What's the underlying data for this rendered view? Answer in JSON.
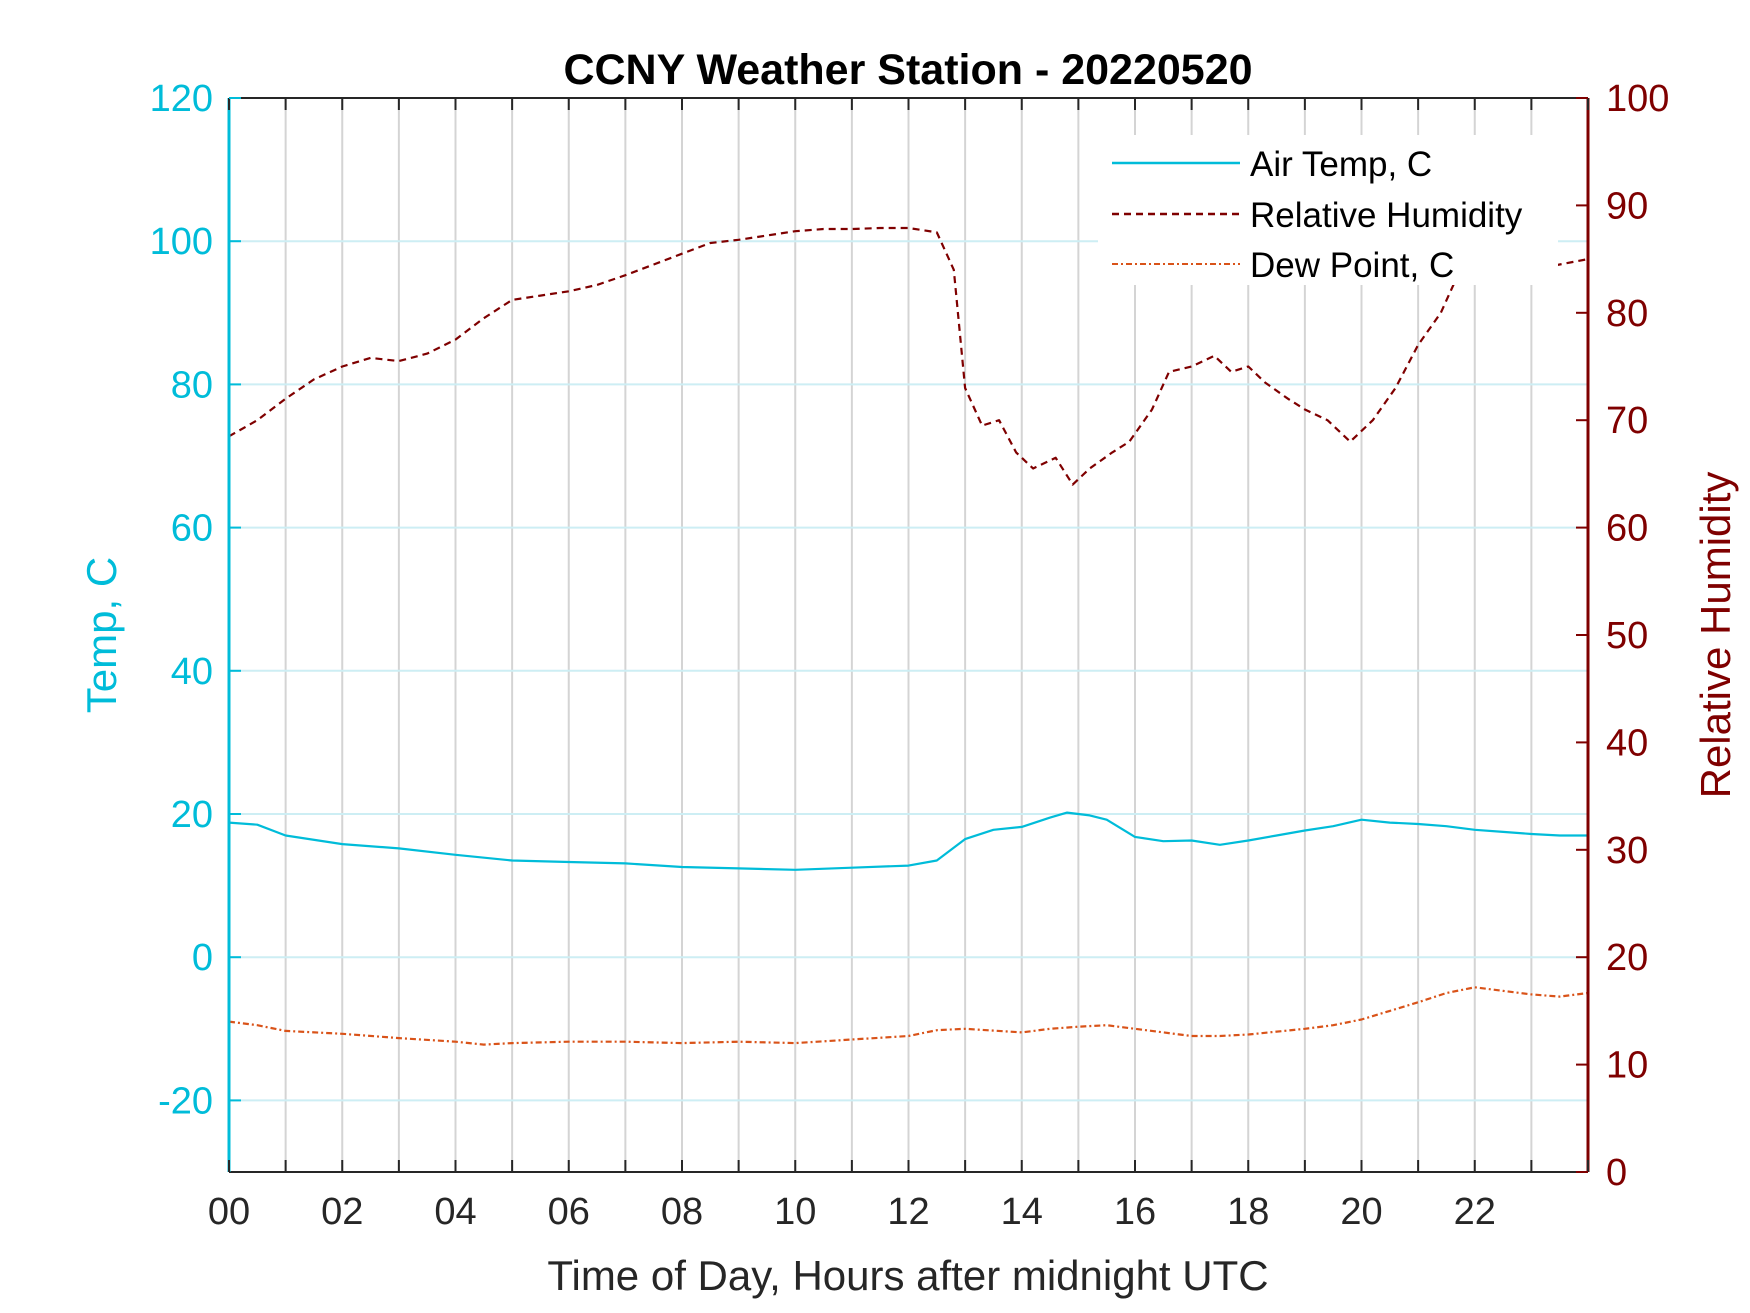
{
  "chart_data": {
    "type": "line",
    "title": "CCNY Weather Station - 20220520",
    "xlabel": "Time of Day, Hours after midnight UTC",
    "ylabel_left": "Temp, C",
    "ylabel_right": "Relative Humidity",
    "xlim": [
      0,
      24
    ],
    "ylim_left": [
      -30,
      120
    ],
    "ylim_right": [
      0,
      100
    ],
    "x_ticks": [
      0,
      2,
      4,
      6,
      8,
      10,
      12,
      14,
      16,
      18,
      20,
      22
    ],
    "x_tick_labels": [
      "00",
      "02",
      "04",
      "06",
      "08",
      "10",
      "12",
      "14",
      "16",
      "18",
      "20",
      "22"
    ],
    "y_left_ticks": [
      -20,
      0,
      20,
      40,
      60,
      80,
      100,
      120
    ],
    "y_right_ticks": [
      0,
      10,
      20,
      30,
      40,
      50,
      60,
      70,
      80,
      90,
      100
    ],
    "grid": "vertical lines every hour; horizontal lines at left-axis ticks",
    "legend_position": "top-right",
    "colors": {
      "air_temp": "#00bcd9",
      "humidity": "#7f0000",
      "dew_point": "#d95319",
      "left_axis": "#00bcd9",
      "right_axis": "#7f0000"
    },
    "series": [
      {
        "name": "Air Temp, C",
        "axis": "left",
        "style": "solid",
        "x": [
          0,
          0.5,
          1,
          2,
          3,
          4,
          5,
          6,
          7,
          8,
          9,
          10,
          11,
          12,
          12.5,
          13,
          13.5,
          14,
          14.5,
          14.8,
          15.2,
          15.5,
          16,
          16.5,
          17,
          17.5,
          18,
          18.5,
          19,
          19.5,
          20,
          20.5,
          21,
          21.5,
          22,
          22.5,
          23,
          23.5,
          24
        ],
        "y": [
          18.8,
          18.5,
          17,
          15.8,
          15.2,
          14.3,
          13.5,
          13.3,
          13.1,
          12.6,
          12.4,
          12.2,
          12.5,
          12.8,
          13.5,
          16.5,
          17.8,
          18.2,
          19.5,
          20.2,
          19.8,
          19.2,
          16.8,
          16.2,
          16.3,
          15.7,
          16.3,
          17,
          17.7,
          18.3,
          19.2,
          18.8,
          18.6,
          18.3,
          17.8,
          17.5,
          17.2,
          17,
          17
        ]
      },
      {
        "name": "Relative Humidity",
        "axis": "right",
        "style": "dashed",
        "x": [
          0,
          0.5,
          1,
          1.5,
          2,
          2.5,
          3,
          3.5,
          4,
          4.5,
          5,
          5.5,
          6,
          6.5,
          7,
          7.5,
          8,
          8.5,
          9,
          9.5,
          10,
          10.5,
          11,
          11.5,
          12,
          12.5,
          12.8,
          13,
          13.3,
          13.6,
          13.9,
          14.2,
          14.6,
          14.9,
          15.2,
          15.6,
          15.9,
          16.3,
          16.6,
          17,
          17.4,
          17.7,
          18,
          18.3,
          18.7,
          19,
          19.4,
          19.8,
          20.2,
          20.6,
          21,
          21.4,
          21.7,
          22,
          22.5,
          23,
          23.5,
          24
        ],
        "y": [
          68.5,
          70,
          72,
          73.8,
          75,
          75.8,
          75.5,
          76.2,
          77.5,
          79.5,
          81.2,
          81.6,
          82,
          82.6,
          83.5,
          84.5,
          85.5,
          86.5,
          86.8,
          87.2,
          87.6,
          87.8,
          87.8,
          87.9,
          87.9,
          87.5,
          84,
          73,
          69.5,
          70,
          67,
          65.5,
          66.5,
          64,
          65.5,
          67,
          68,
          71,
          74.5,
          75,
          76,
          74.5,
          75,
          73.5,
          72,
          71,
          70,
          68,
          70,
          73,
          77,
          80,
          83.5,
          84.8,
          84.5,
          84,
          84.5,
          85
        ]
      },
      {
        "name": "Dew Point, C",
        "axis": "left",
        "style": "dash-dot",
        "x": [
          0,
          0.5,
          1,
          2,
          3,
          4,
          4.5,
          5,
          6,
          7,
          8,
          9,
          10,
          11,
          12,
          12.5,
          13,
          14,
          14.5,
          15,
          15.5,
          16,
          16.5,
          17,
          17.5,
          18,
          19,
          19.5,
          20,
          20.5,
          21,
          21.5,
          22,
          22.5,
          23,
          23.5,
          24
        ],
        "y": [
          -9,
          -9.5,
          -10.3,
          -10.7,
          -11.3,
          -11.8,
          -12.2,
          -12,
          -11.8,
          -11.8,
          -12,
          -11.8,
          -12,
          -11.5,
          -11,
          -10.2,
          -10,
          -10.5,
          -10,
          -9.7,
          -9.5,
          -10,
          -10.5,
          -11,
          -11,
          -10.8,
          -10,
          -9.5,
          -8.7,
          -7.5,
          -6.3,
          -5,
          -4.2,
          -4.7,
          -5.2,
          -5.5,
          -5
        ]
      }
    ]
  }
}
